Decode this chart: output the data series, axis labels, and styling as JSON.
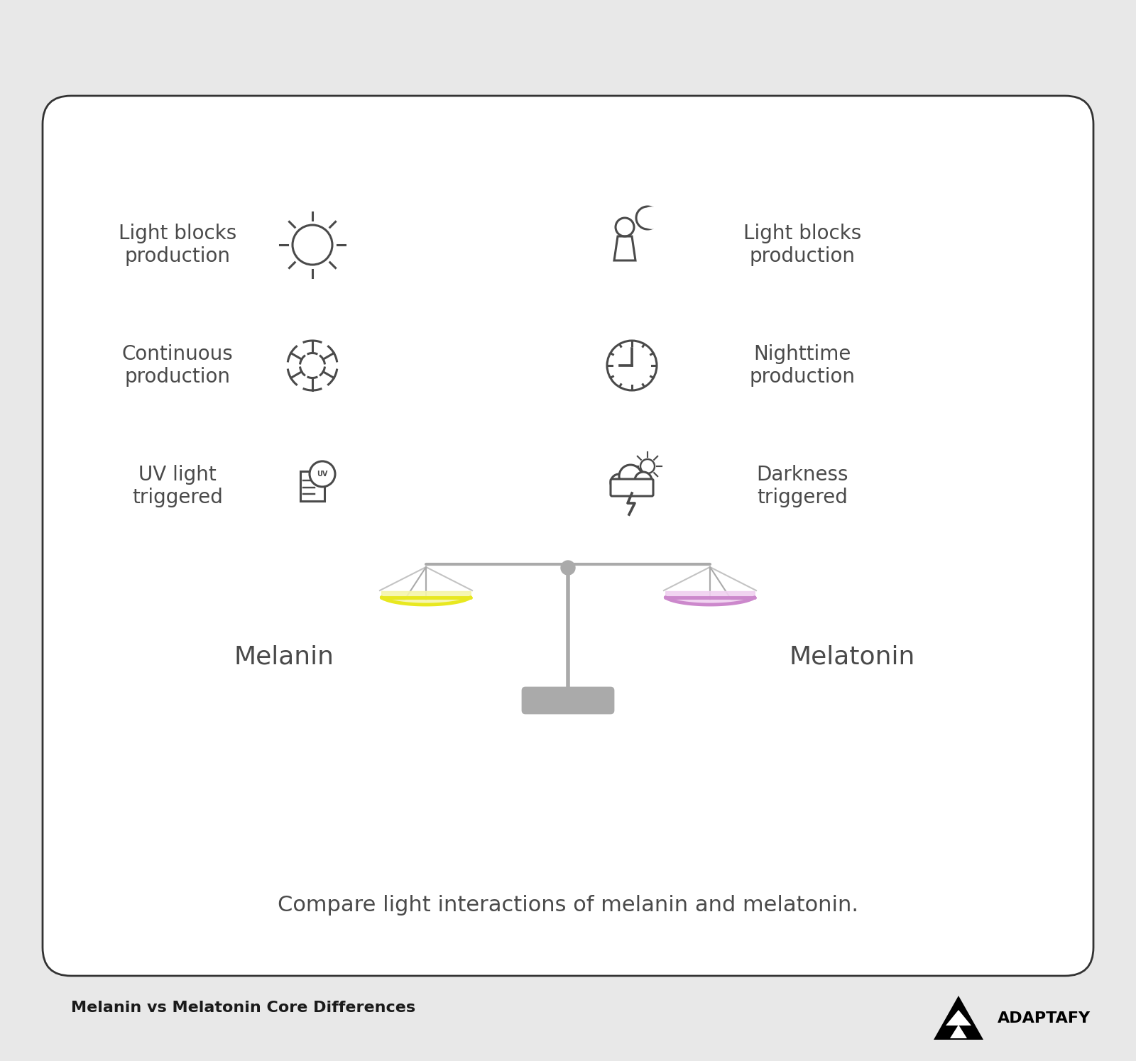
{
  "bg_color": "#e8e8e8",
  "card_color": "#ffffff",
  "icon_color": "#4a4a4a",
  "text_color": "#4a4a4a",
  "title_color": "#1a1a1a",
  "scale_color": "#aaaaaa",
  "left_pan_color": "#e8e820",
  "left_pan_fill": "#f5f5aa",
  "right_pan_color": "#cc88cc",
  "right_pan_fill": "#f0d0f0",
  "left_label": "Melanin",
  "right_label": "Melatonin",
  "left_items": [
    "Light blocks\nproduction",
    "Continuous\nproduction",
    "UV light\ntriggered"
  ],
  "right_items": [
    "Light blocks\nproduction",
    "Nighttime\nproduction",
    "Darkness\ntriggered"
  ],
  "caption": "Compare light interactions of melanin and melatonin.",
  "footer_title": "Melanin vs Melatonin Core Differences",
  "brand": "ADAPTAFY"
}
